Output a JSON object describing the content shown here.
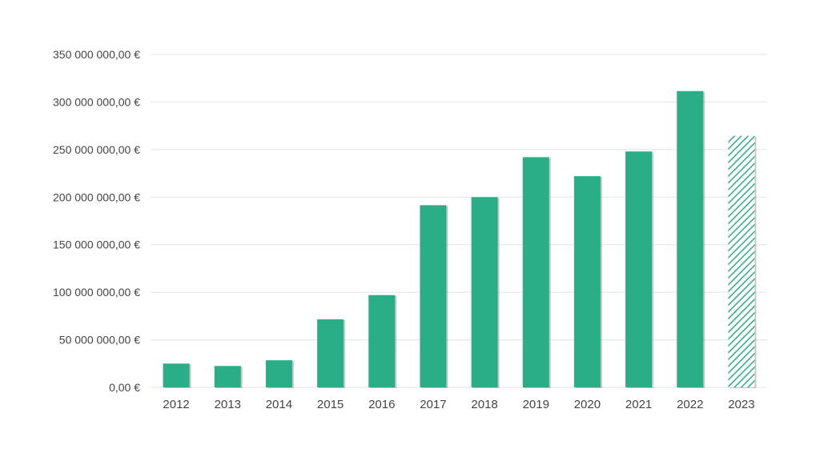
{
  "chart_data": {
    "type": "bar",
    "title": "",
    "xlabel": "",
    "ylabel": "",
    "categories": [
      "2012",
      "2013",
      "2014",
      "2015",
      "2016",
      "2017",
      "2018",
      "2019",
      "2020",
      "2021",
      "2022",
      "2023"
    ],
    "values": [
      25000000,
      22500000,
      28500000,
      71500000,
      97000000,
      191500000,
      200000000,
      242000000,
      222000000,
      248000000,
      311500000,
      264500000
    ],
    "ylim": [
      0,
      350000000
    ],
    "y_ticks": [
      0,
      50000000,
      100000000,
      150000000,
      200000000,
      250000000,
      300000000,
      350000000
    ],
    "y_tick_labels": [
      "0,00 €",
      "50 000 000,00 €",
      "100 000 000,00 €",
      "150 000 000,00 €",
      "200 000 000,00 €",
      "250 000 000,00 €",
      "300 000 000,00 €",
      "350 000 000,00 €"
    ],
    "grid": true,
    "legend": "none",
    "bar_color": "#2aae88",
    "hatched_categories": [
      "2023"
    ],
    "grid_color": "#e3e3e3"
  }
}
